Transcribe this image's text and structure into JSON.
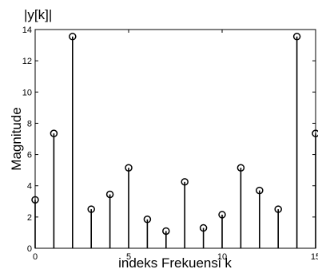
{
  "chart_data": {
    "type": "stem",
    "title": "|y[k]|",
    "xlabel": "indeks Frekuensi k",
    "ylabel": "Magnitude",
    "x": [
      0,
      1,
      2,
      3,
      4,
      5,
      6,
      7,
      8,
      9,
      10,
      11,
      12,
      13,
      14,
      15
    ],
    "values": [
      3.1,
      7.35,
      13.55,
      2.5,
      3.45,
      5.15,
      1.85,
      1.1,
      4.25,
      1.3,
      2.15,
      5.15,
      3.7,
      2.5,
      13.55,
      7.35
    ],
    "xlim": [
      0,
      15
    ],
    "ylim": [
      0,
      14
    ],
    "xticks": [
      "0",
      "5",
      "10",
      "15"
    ],
    "yticks": [
      "0",
      "2",
      "4",
      "6",
      "8",
      "10",
      "12",
      "14"
    ],
    "grid": false,
    "legend": "none",
    "marker": "circle",
    "color": "#000000"
  }
}
